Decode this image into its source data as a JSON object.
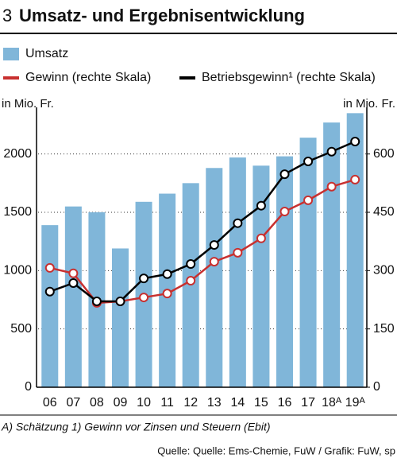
{
  "chart_data": {
    "type": "bar-line",
    "number": "3",
    "title": "Umsatz- und Ergebnisentwicklung",
    "ylabel": "in Mio. Fr.",
    "y2label": "in Mio. Fr.",
    "categories": [
      "06",
      "07",
      "08",
      "09",
      "10",
      "11",
      "12",
      "13",
      "14",
      "15",
      "16",
      "17",
      "18ᴬ",
      "19ᴬ"
    ],
    "series": [
      {
        "name": "Umsatz",
        "type": "bar",
        "color": "#80b6d9",
        "axis": "y",
        "values": [
          1390,
          1550,
          1500,
          1190,
          1590,
          1660,
          1750,
          1880,
          1970,
          1900,
          1980,
          2140,
          2270,
          2350
        ]
      },
      {
        "name": "Gewinn (rechte Skala)",
        "type": "line",
        "color": "#c8302f",
        "axis": "y2",
        "values": [
          307,
          293,
          217,
          221,
          231,
          241,
          274,
          323,
          346,
          383,
          452,
          481,
          516,
          534
        ]
      },
      {
        "name": "Betriebsgewinn¹ (rechte Skala)",
        "type": "line",
        "color": "#000000",
        "axis": "y2",
        "values": [
          246,
          268,
          221,
          221,
          280,
          291,
          317,
          366,
          422,
          467,
          548,
          581,
          606,
          632
        ]
      }
    ],
    "ylim": [
      0,
      2400
    ],
    "yticks": [
      0,
      500,
      1000,
      1500,
      2000
    ],
    "y2lim": [
      0,
      720
    ],
    "y2ticks": [
      0,
      150,
      300,
      450,
      600
    ],
    "grid": true,
    "footnote": "A) Schätzung    1) Gewinn vor Zinsen und Steuern (Ebit)",
    "source": "Quelle: Quelle: Ems-Chemie, FuW / Grafik: FuW, sp"
  }
}
